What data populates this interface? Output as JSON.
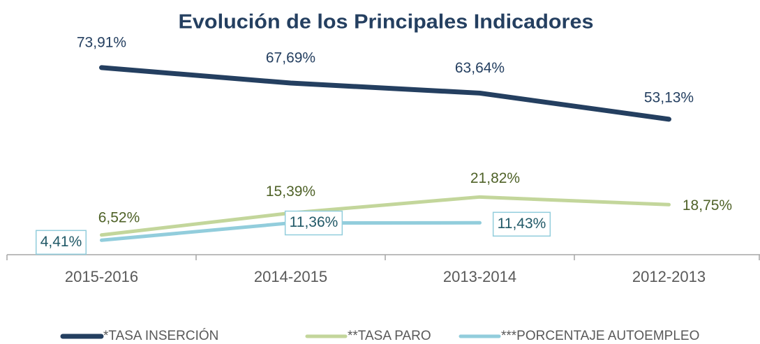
{
  "chart_data": {
    "type": "line",
    "title": "Evolución de los Principales Indicadores",
    "categories": [
      "2015-2016",
      "2014-2015",
      "2013-2014",
      "2012-2013"
    ],
    "ylim": [
      0,
      100
    ],
    "series": [
      {
        "name": "*TASA INSERCIÓN",
        "color": "#243f60",
        "label_color": "#243f60",
        "values": [
          73.91,
          67.69,
          63.64,
          53.13
        ],
        "value_labels": [
          "73,91%",
          "67,69%",
          "63,64%",
          "53,13%"
        ]
      },
      {
        "name": "**TASA PARO",
        "color": "#c3d69b",
        "label_color": "#4f6228",
        "values": [
          6.52,
          15.39,
          21.82,
          18.75
        ],
        "value_labels": [
          "6,52%",
          "15,39%",
          "21,82%",
          "18,75%"
        ]
      },
      {
        "name": "***PORCENTAJE AUTOEMPLEO",
        "color": "#92cddc",
        "label_color": "#215967",
        "values": [
          4.41,
          11.36,
          11.43,
          null
        ],
        "value_labels": [
          "4,41%",
          "11,36%",
          "11,43%",
          null
        ]
      }
    ]
  }
}
